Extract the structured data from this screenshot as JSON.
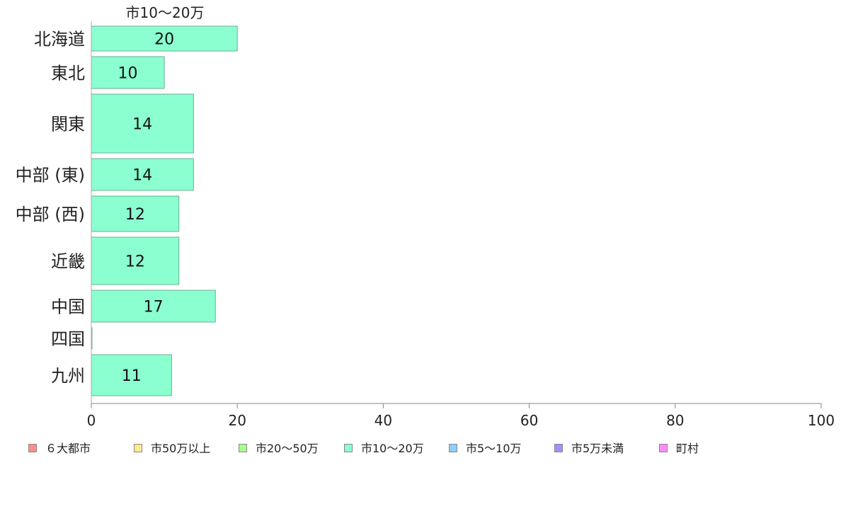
{
  "chart_data": {
    "type": "bar",
    "orientation": "horizontal",
    "title": "市10〜20万",
    "categories": [
      "北海道",
      "東北",
      "関東",
      "中部 (東)",
      "中部 (西)",
      "近畿",
      "中国",
      "四国",
      "九州"
    ],
    "values": [
      20,
      10,
      14,
      14,
      12,
      12,
      17,
      0,
      11
    ],
    "data_labels": [
      "20",
      "10",
      "14",
      "14",
      "12",
      "12",
      "17",
      "",
      "11"
    ],
    "xlim": [
      0,
      100
    ],
    "xticks": [
      "0",
      "20",
      "40",
      "60",
      "80",
      "100"
    ],
    "grid": false,
    "bar_color": "#8bffd0",
    "legend_placement": "bottom",
    "legend": [
      {
        "label": "６大都市",
        "color": "#ff8c8c"
      },
      {
        "label": "市50万以上",
        "color": "#ffeb8c"
      },
      {
        "label": "市20〜50万",
        "color": "#a8ff8c"
      },
      {
        "label": "市10〜20万",
        "color": "#8bffd0"
      },
      {
        "label": "市5〜10万",
        "color": "#8ccfff"
      },
      {
        "label": "市5万未満",
        "color": "#a98cff"
      },
      {
        "label": "町村",
        "color": "#ff8cff"
      }
    ]
  }
}
